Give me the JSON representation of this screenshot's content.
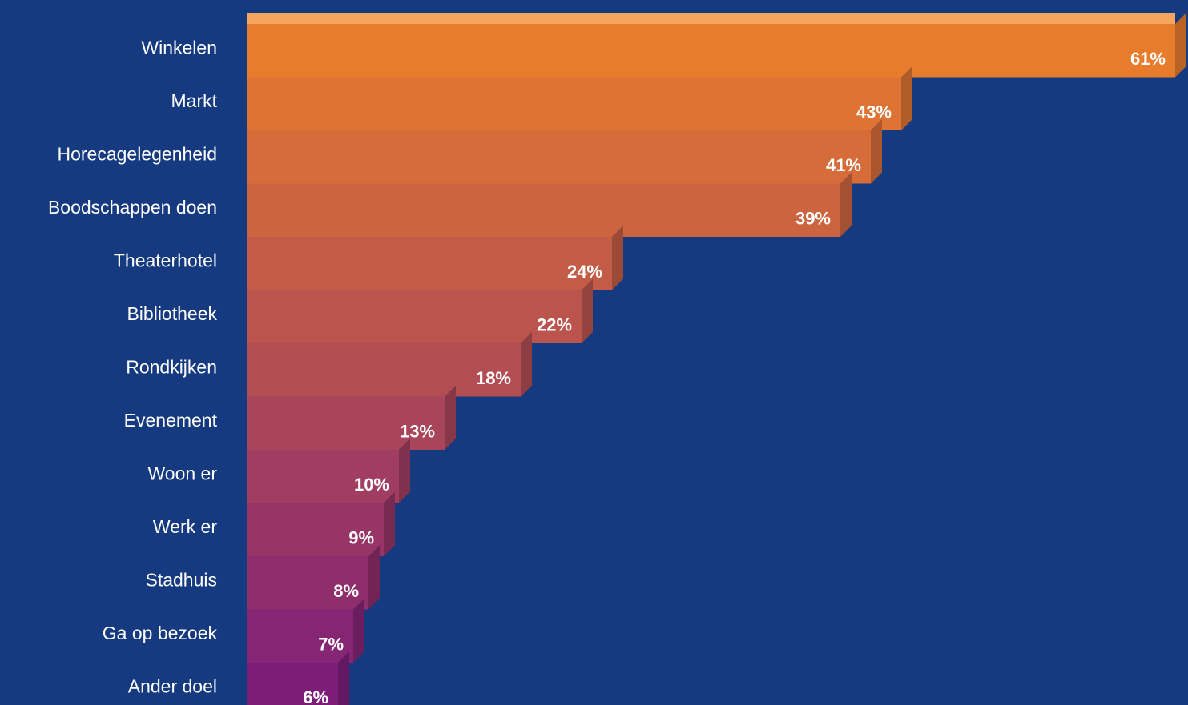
{
  "colors": {
    "background": "#163a80",
    "label_text": "#ffffff",
    "value_text": "#ffffff",
    "bar_top": "#e67c2c",
    "bar_bottom": "#7d1d7a",
    "bar_top_face": "#f6a55e"
  },
  "chart_data": {
    "type": "bar",
    "orientation": "horizontal",
    "categories": [
      "Winkelen",
      "Markt",
      "Horecagelegenheid",
      "Boodschappen doen",
      "Theaterhotel",
      "Bibliotheek",
      "Rondkijken",
      "Evenement",
      "Woon er",
      "Werk er",
      "Stadhuis",
      "Ga op bezoek",
      "Ander doel"
    ],
    "values": [
      61,
      43,
      41,
      39,
      24,
      22,
      18,
      13,
      10,
      9,
      8,
      7,
      6
    ],
    "value_labels": [
      "61%",
      "43%",
      "41%",
      "39%",
      "24%",
      "22%",
      "18%",
      "13%",
      "10%",
      "9%",
      "8%",
      "7%",
      "6%"
    ],
    "unit": "%",
    "xlim": [
      0,
      61
    ],
    "grid": false,
    "legend": "none"
  }
}
